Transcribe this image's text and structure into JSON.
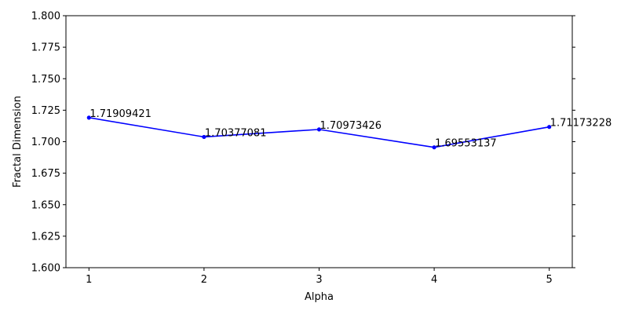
{
  "chart_data": {
    "type": "line",
    "title": "",
    "xlabel": "Alpha",
    "ylabel": "Fractal Dimension",
    "x": [
      1,
      2,
      3,
      4,
      5
    ],
    "series": [
      {
        "values": [
          1.71909421,
          1.70377081,
          1.70973426,
          1.69553137,
          1.71173228
        ],
        "color": "#0000ff",
        "marker": "dot"
      }
    ],
    "data_labels": [
      "1.71909421",
      "1.70377081",
      "1.70973426",
      "1.69553137",
      "1.71173228"
    ],
    "xlim": [
      0.8,
      5.2
    ],
    "ylim": [
      1.6,
      1.8
    ],
    "xticks": [
      1,
      2,
      3,
      4,
      5
    ],
    "xtick_labels": [
      "1",
      "2",
      "3",
      "4",
      "5"
    ],
    "yticks": [
      1.6,
      1.625,
      1.65,
      1.675,
      1.7,
      1.725,
      1.75,
      1.775,
      1.8
    ],
    "ytick_labels": [
      "1.600",
      "1.625",
      "1.650",
      "1.675",
      "1.700",
      "1.725",
      "1.750",
      "1.775",
      "1.800"
    ],
    "grid": false,
    "legend": "none"
  }
}
